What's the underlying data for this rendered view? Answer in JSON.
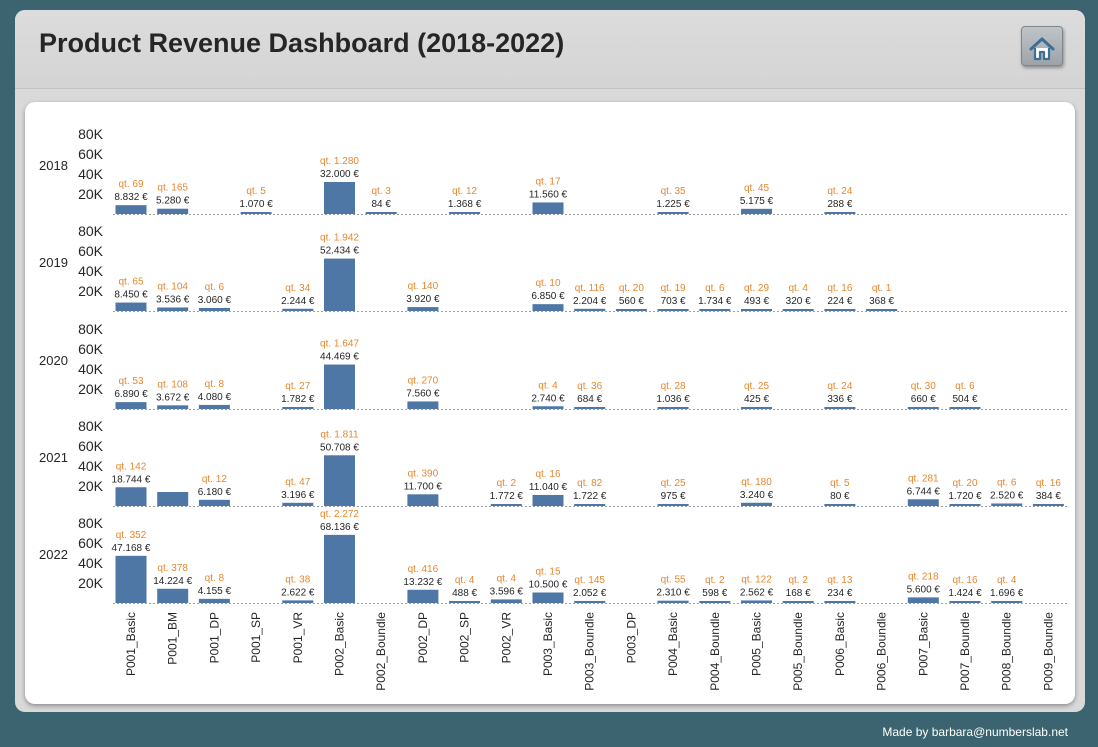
{
  "header": {
    "title": "Product Revenue Dashboard (2018-2022)",
    "home_icon": "home-icon"
  },
  "footer": {
    "credit": "Made by barbara@numberslab.net"
  },
  "colors": {
    "bar": "#4e77a5",
    "quantity_label": "#e6872e",
    "background": "#3b6470"
  },
  "chart_data": {
    "type": "bar",
    "title": "Product Revenue Dashboard (2018-2022)",
    "ylim": [
      0,
      80000
    ],
    "yticks": [
      "80K",
      "60K",
      "40K",
      "20K"
    ],
    "grid": false,
    "categories": [
      "P001_Basic",
      "P001_BM",
      "P001_DP",
      "P001_SP",
      "P001_VR",
      "P002_Basic",
      "P002_Boundle",
      "P002_DP",
      "P002_SP",
      "P002_VR",
      "P003_Basic",
      "P003_Boundle",
      "P003_DP",
      "P004_Basic",
      "P004_Boundle",
      "P005_Basic",
      "P005_Boundle",
      "P006_Basic",
      "P006_Boundle",
      "P007_Basic",
      "P007_Boundle",
      "P008_Boundle",
      "P009_Boundle"
    ],
    "series": [
      {
        "name": "2018",
        "values": [
          8832,
          5280,
          null,
          1070,
          null,
          32000,
          84,
          null,
          1368,
          null,
          11560,
          null,
          null,
          1225,
          null,
          5175,
          null,
          288,
          null,
          null,
          null,
          null,
          null
        ],
        "revenue": [
          "8.832 €",
          "5.280 €",
          null,
          "1.070 €",
          null,
          "32.000 €",
          "84 €",
          null,
          "1.368 €",
          null,
          "11.560 €",
          null,
          null,
          "1.225 €",
          null,
          "5.175 €",
          null,
          "288 €",
          null,
          null,
          null,
          null,
          null
        ],
        "quantity": [
          "qt. 69",
          "qt. 165",
          null,
          "qt. 5",
          null,
          "qt. 1.280",
          "qt. 3",
          null,
          "qt. 12",
          null,
          "qt. 17",
          null,
          null,
          "qt. 35",
          null,
          "qt. 45",
          null,
          "qt. 24",
          null,
          null,
          null,
          null,
          null
        ]
      },
      {
        "name": "2019",
        "values": [
          8450,
          3536,
          3060,
          null,
          2244,
          52434,
          null,
          3920,
          null,
          null,
          6850,
          2204,
          560,
          703,
          1734,
          493,
          320,
          224,
          368,
          null,
          null,
          null,
          null
        ],
        "revenue": [
          "8.450 €",
          "3.536 €",
          "3.060 €",
          null,
          "2.244 €",
          "52.434 €",
          null,
          "3.920 €",
          null,
          null,
          "6.850 €",
          "2.204 €",
          "560 €",
          "703 €",
          "1.734 €",
          "493 €",
          "320 €",
          "224 €",
          "368 €",
          null,
          null,
          null,
          null
        ],
        "quantity": [
          "qt. 65",
          "qt. 104",
          "qt. 6",
          null,
          "qt. 34",
          "qt. 1.942",
          null,
          "qt. 140",
          null,
          null,
          "qt. 10",
          "qt. 116",
          "qt. 20",
          "qt. 19",
          "qt. 6",
          "qt. 29",
          "qt. 4",
          "qt. 16",
          "qt. 1",
          null,
          null,
          null,
          null
        ]
      },
      {
        "name": "2020",
        "values": [
          6890,
          3672,
          4080,
          null,
          1782,
          44469,
          null,
          7560,
          null,
          null,
          2740,
          684,
          null,
          1036,
          null,
          425,
          null,
          336,
          null,
          660,
          504,
          null,
          null
        ],
        "revenue": [
          "6.890 €",
          "3.672 €",
          "4.080 €",
          null,
          "1.782 €",
          "44.469 €",
          null,
          "7.560 €",
          null,
          null,
          "2.740 €",
          "684 €",
          null,
          "1.036 €",
          null,
          "425 €",
          null,
          "336 €",
          null,
          "660 €",
          "504 €",
          null,
          null
        ],
        "quantity": [
          "qt. 53",
          "qt. 108",
          "qt. 8",
          null,
          "qt. 27",
          "qt. 1.647",
          null,
          "qt. 270",
          null,
          null,
          "qt. 4",
          "qt. 36",
          null,
          "qt. 28",
          null,
          "qt. 25",
          null,
          "qt. 24",
          null,
          "qt. 30",
          "qt. 6",
          null,
          null
        ]
      },
      {
        "name": "2021",
        "values": [
          18744,
          14000,
          6180,
          null,
          3196,
          50708,
          null,
          11700,
          null,
          1772,
          11040,
          1722,
          null,
          975,
          null,
          3240,
          null,
          80,
          null,
          6744,
          1720,
          2520,
          384
        ],
        "revenue": [
          "18.744 €",
          null,
          "6.180 €",
          null,
          "3.196 €",
          "50.708 €",
          null,
          "11.700 €",
          null,
          "1.772 €",
          "11.040 €",
          "1.722 €",
          null,
          "975 €",
          null,
          "3.240 €",
          null,
          "80 €",
          null,
          "6.744 €",
          "1.720 €",
          "2.520 €",
          "384 €"
        ],
        "quantity": [
          "qt. 142",
          null,
          "qt. 12",
          null,
          "qt. 47",
          "qt. 1.811",
          null,
          "qt. 390",
          null,
          "qt. 2",
          "qt. 16",
          "qt. 82",
          null,
          "qt. 25",
          null,
          "qt. 180",
          null,
          "qt. 5",
          null,
          "qt. 281",
          "qt. 20",
          "qt. 6",
          "qt. 16"
        ]
      },
      {
        "name": "2022",
        "values": [
          47168,
          14224,
          4155,
          null,
          2622,
          68136,
          null,
          13232,
          488,
          3596,
          10500,
          2052,
          null,
          2310,
          598,
          2562,
          168,
          234,
          null,
          5600,
          1424,
          1696,
          null
        ],
        "revenue": [
          "47.168 €",
          "14.224 €",
          "4.155 €",
          null,
          "2.622 €",
          "68.136 €",
          null,
          "13.232 €",
          "488 €",
          "3.596 €",
          "10.500 €",
          "2.052 €",
          null,
          "2.310 €",
          "598 €",
          "2.562 €",
          "168 €",
          "234 €",
          null,
          "5.600 €",
          "1.424 €",
          "1.696 €",
          null
        ],
        "quantity": [
          "qt. 352",
          "qt. 378",
          "qt. 8",
          null,
          "qt. 38",
          "qt. 2.272",
          null,
          "qt. 416",
          "qt. 4",
          "qt. 4",
          "qt. 15",
          "qt. 145",
          null,
          "qt. 55",
          "qt. 2",
          "qt. 122",
          "qt. 2",
          "qt. 13",
          null,
          "qt. 218",
          "qt. 16",
          "qt. 4",
          null
        ]
      }
    ]
  }
}
